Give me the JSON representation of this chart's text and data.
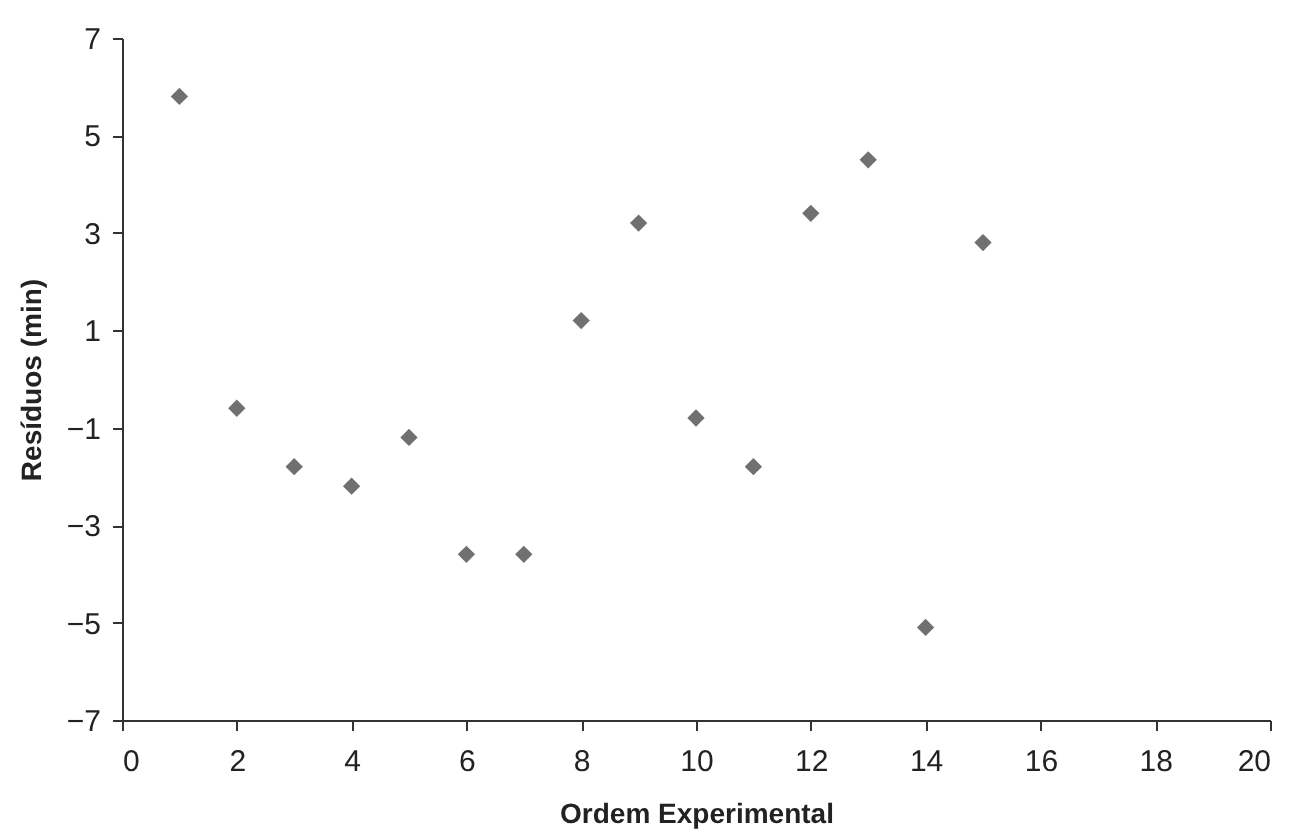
{
  "chart_data": {
    "type": "scatter",
    "xlabel": "Ordem Experimental",
    "ylabel": "Resíduos (min)",
    "x": [
      1,
      2,
      3,
      4,
      5,
      6,
      7,
      8,
      9,
      10,
      11,
      12,
      13,
      14,
      15
    ],
    "series": [
      {
        "color": "#707070",
        "values": [
          5.8,
          -0.6,
          -1.8,
          -2.2,
          -1.2,
          -3.6,
          -3.6,
          1.2,
          3.2,
          -0.8,
          -1.8,
          3.4,
          4.5,
          -5.1,
          2.8
        ]
      }
    ],
    "xlim": [
      0,
      20
    ],
    "xticks": [
      0,
      2,
      4,
      6,
      8,
      10,
      12,
      14,
      16,
      18,
      20
    ],
    "ylim": [
      -7,
      7
    ],
    "yticks": [
      -7,
      -5,
      -3,
      -1,
      1,
      3,
      5,
      7
    ],
    "grid": false,
    "marker": "diamond"
  }
}
